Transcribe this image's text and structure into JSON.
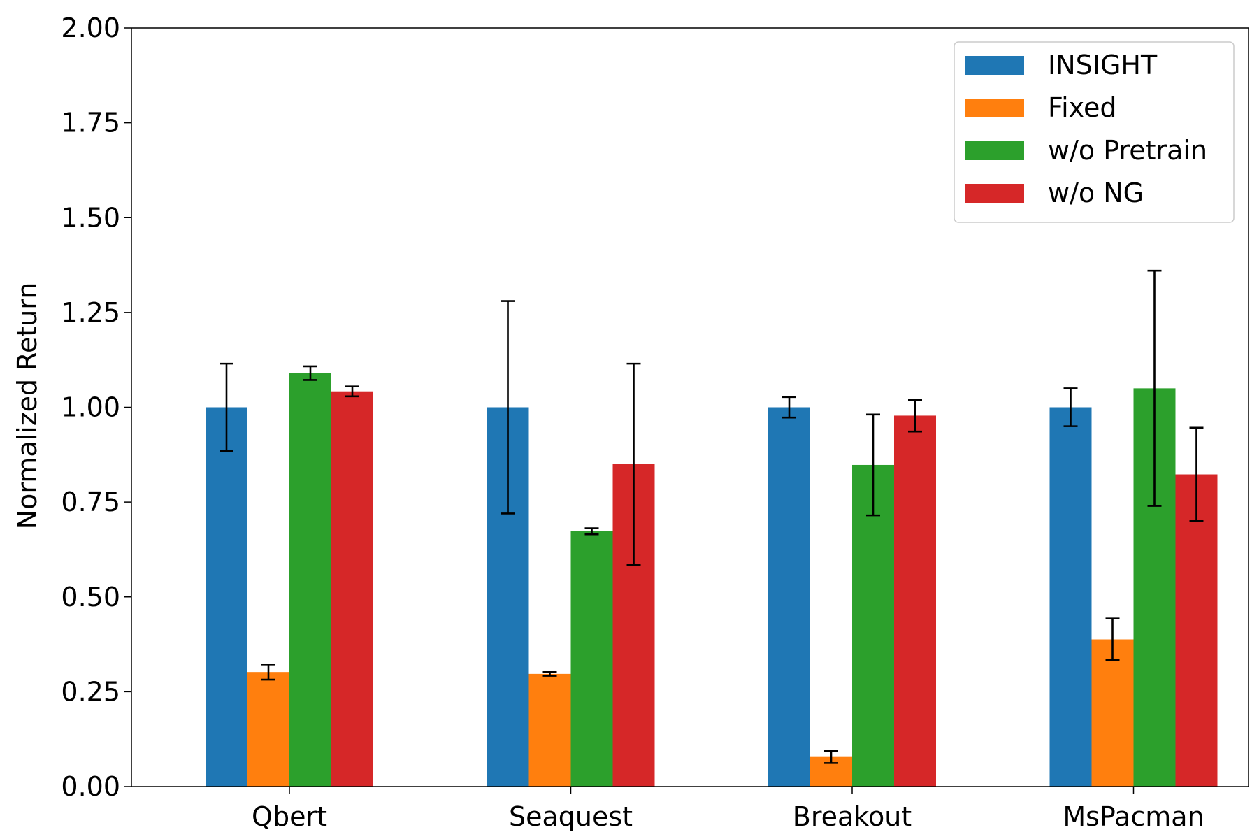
{
  "chart_data": {
    "type": "bar",
    "categories": [
      "Qbert",
      "Seaquest",
      "Breakout",
      "MsPacman"
    ],
    "ylabel": "Normalized Return",
    "xlabel": "",
    "ylim": [
      0,
      2
    ],
    "yticks": [
      "0.00",
      "0.25",
      "0.50",
      "0.75",
      "1.00",
      "1.25",
      "1.50",
      "1.75",
      "2.00"
    ],
    "grid": false,
    "legend_position": "top-right",
    "series": [
      {
        "name": "INSIGHT",
        "color": "#1f77b4",
        "values": [
          1.0,
          1.0,
          1.0,
          1.0
        ],
        "errors": [
          0.115,
          0.28,
          0.027,
          0.05
        ]
      },
      {
        "name": "Fixed",
        "color": "#ff7f0e",
        "values": [
          0.302,
          0.297,
          0.078,
          0.388
        ],
        "errors": [
          0.02,
          0.005,
          0.016,
          0.055
        ]
      },
      {
        "name": "w/o Pretrain",
        "color": "#2ca02c",
        "values": [
          1.09,
          0.673,
          0.848,
          1.05
        ],
        "errors": [
          0.018,
          0.008,
          0.133,
          0.31
        ]
      },
      {
        "name": "w/o NG",
        "color": "#d62728",
        "values": [
          1.042,
          0.85,
          0.978,
          0.823
        ],
        "errors": [
          0.013,
          0.265,
          0.042,
          0.123
        ]
      }
    ]
  }
}
